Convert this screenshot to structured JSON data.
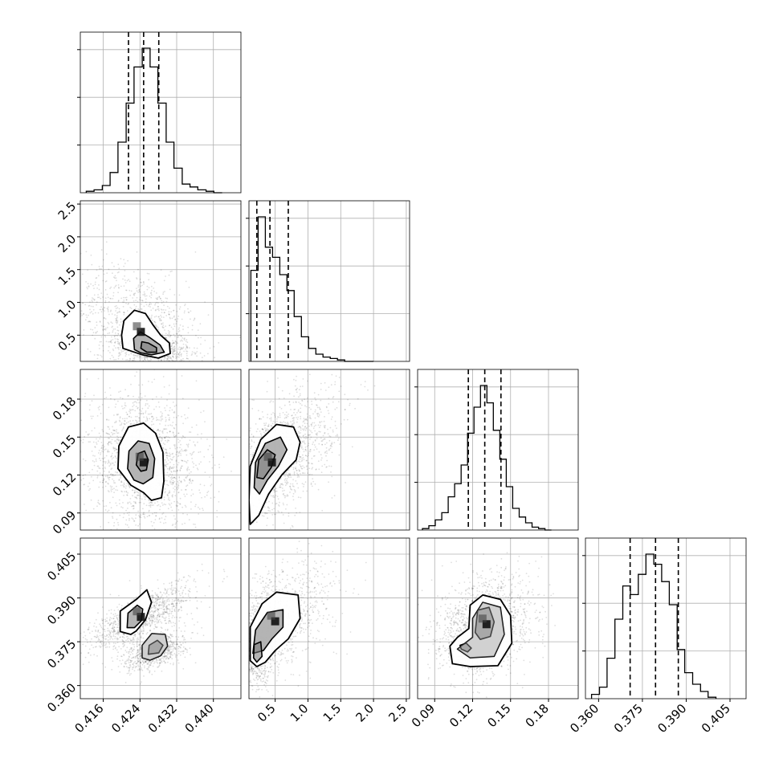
{
  "chart_data": {
    "type": "corner",
    "grid": true,
    "histogram_style": "step",
    "point_color": "#000000",
    "fill_color": "#000000",
    "quantile_line_style": "dashed",
    "params": [
      {
        "range": [
          0.411,
          0.446
        ],
        "ticks": [
          "0.416",
          "0.424",
          "0.432",
          "0.440"
        ],
        "tick_values": [
          0.416,
          0.424,
          0.432,
          0.44
        ],
        "quantiles": [
          0.4215,
          0.4248,
          0.4281
        ],
        "hist_bins": [
          0.4123,
          0.414,
          0.4158,
          0.4175,
          0.4192,
          0.421,
          0.4227,
          0.4245,
          0.4262,
          0.4279,
          0.4297,
          0.4314,
          0.4332,
          0.4349,
          0.4366,
          0.4384,
          0.4401,
          0.4419
        ],
        "hist_counts": [
          0.01,
          0.02,
          0.05,
          0.14,
          0.35,
          0.62,
          0.87,
          1.0,
          0.87,
          0.62,
          0.35,
          0.17,
          0.06,
          0.04,
          0.02,
          0.01,
          0.0
        ]
      },
      {
        "range": [
          0.1,
          2.55
        ],
        "ticks": [
          "0.5",
          "1.0",
          "1.5",
          "2.0",
          "2.5"
        ],
        "tick_values": [
          0.5,
          1.0,
          1.5,
          2.0,
          2.5
        ],
        "quantiles": [
          0.22,
          0.42,
          0.7
        ],
        "hist_bins": [
          0.13,
          0.24,
          0.35,
          0.46,
          0.57,
          0.68,
          0.79,
          0.9,
          1.01,
          1.12,
          1.23,
          1.34,
          1.45,
          1.56,
          1.67,
          1.78,
          1.89,
          2.0
        ],
        "hist_counts": [
          0.63,
          1.0,
          0.79,
          0.72,
          0.6,
          0.49,
          0.31,
          0.17,
          0.09,
          0.05,
          0.03,
          0.02,
          0.01,
          0.0,
          0.0,
          0.0,
          0.0
        ]
      },
      {
        "range": [
          0.0765,
          0.2035
        ],
        "ticks": [
          "0.09",
          "0.12",
          "0.15",
          "0.18"
        ],
        "tick_values": [
          0.09,
          0.12,
          0.15,
          0.18
        ],
        "quantiles": [
          0.1166,
          0.1296,
          0.1424
        ],
        "hist_bins": [
          0.0803,
          0.0854,
          0.0905,
          0.0956,
          0.1007,
          0.1058,
          0.1109,
          0.116,
          0.1211,
          0.1262,
          0.1313,
          0.1364,
          0.1415,
          0.1466,
          0.1517,
          0.1568,
          0.1619,
          0.167,
          0.1721,
          0.1772,
          0.1823
        ],
        "hist_counts": [
          0.01,
          0.03,
          0.07,
          0.12,
          0.23,
          0.32,
          0.45,
          0.67,
          0.85,
          1.0,
          0.88,
          0.69,
          0.49,
          0.3,
          0.15,
          0.09,
          0.05,
          0.02,
          0.01,
          0.0
        ]
      },
      {
        "range": [
          0.3555,
          0.4105
        ],
        "ticks": [
          "0.360",
          "0.375",
          "0.390",
          "0.405"
        ],
        "tick_values": [
          0.36,
          0.375,
          0.39,
          0.405
        ],
        "quantiles": [
          0.3708,
          0.3795,
          0.3873
        ],
        "hist_bins": [
          0.3576,
          0.3603,
          0.3629,
          0.3656,
          0.3683,
          0.3709,
          0.3736,
          0.3762,
          0.3789,
          0.3816,
          0.3842,
          0.3869,
          0.3895,
          0.3922,
          0.3949,
          0.3975,
          0.4002
        ],
        "hist_counts": [
          0.03,
          0.08,
          0.28,
          0.55,
          0.78,
          0.72,
          0.86,
          1.0,
          0.93,
          0.81,
          0.65,
          0.34,
          0.18,
          0.1,
          0.05,
          0.01
        ]
      }
    ],
    "pairs": [
      {
        "x": 0,
        "y": 1,
        "blobs": [
          {
            "cx": 0.4242,
            "cy": 0.55,
            "sx": 0.0048,
            "sy": 0.35,
            "corr": -0.45,
            "w": 0.65
          },
          {
            "cx": 0.4268,
            "cy": 0.3,
            "sx": 0.0025,
            "sy": 0.1,
            "corr": -0.3,
            "w": 0.35
          }
        ],
        "levels": [
          [
            [
              0.4203,
              0.3
            ],
            [
              0.42,
              0.5
            ],
            [
              0.4205,
              0.72
            ],
            [
              0.4228,
              0.88
            ],
            [
              0.4252,
              0.83
            ],
            [
              0.4268,
              0.66
            ],
            [
              0.4285,
              0.5
            ],
            [
              0.4304,
              0.38
            ],
            [
              0.4306,
              0.22
            ],
            [
              0.428,
              0.15
            ],
            [
              0.4245,
              0.2
            ]
          ],
          [
            [
              0.4228,
              0.28
            ],
            [
              0.4226,
              0.45
            ],
            [
              0.4241,
              0.55
            ],
            [
              0.4262,
              0.46
            ],
            [
              0.4284,
              0.35
            ],
            [
              0.4293,
              0.24
            ],
            [
              0.4265,
              0.2
            ],
            [
              0.4242,
              0.23
            ]
          ],
          [
            [
              0.4242,
              0.3
            ],
            [
              0.4244,
              0.4
            ],
            [
              0.4258,
              0.38
            ],
            [
              0.4276,
              0.31
            ],
            [
              0.4276,
              0.24
            ],
            [
              0.4255,
              0.24
            ]
          ]
        ]
      },
      {
        "x": 0,
        "y": 2,
        "blobs": [
          {
            "cx": 0.4248,
            "cy": 0.13,
            "sx": 0.0042,
            "sy": 0.017,
            "corr": -0.15,
            "w": 1.0
          }
        ],
        "levels": [
          [
            [
              0.4192,
              0.125
            ],
            [
              0.4194,
              0.143
            ],
            [
              0.4215,
              0.158
            ],
            [
              0.4248,
              0.161
            ],
            [
              0.4274,
              0.153
            ],
            [
              0.429,
              0.138
            ],
            [
              0.4292,
              0.115
            ],
            [
              0.4287,
              0.102
            ],
            [
              0.4265,
              0.1
            ],
            [
              0.4248,
              0.106
            ],
            [
              0.422,
              0.112
            ]
          ],
          [
            [
              0.4213,
              0.125
            ],
            [
              0.4216,
              0.139
            ],
            [
              0.4236,
              0.147
            ],
            [
              0.426,
              0.145
            ],
            [
              0.4272,
              0.133
            ],
            [
              0.4268,
              0.118
            ],
            [
              0.4247,
              0.113
            ],
            [
              0.4227,
              0.116
            ]
          ],
          [
            [
              0.4232,
              0.128
            ],
            [
              0.4236,
              0.137
            ],
            [
              0.425,
              0.139
            ],
            [
              0.4258,
              0.132
            ],
            [
              0.4254,
              0.124
            ],
            [
              0.4242,
              0.123
            ]
          ]
        ]
      },
      {
        "x": 1,
        "y": 2,
        "blobs": [
          {
            "cx": 0.45,
            "cy": 0.13,
            "sx": 0.32,
            "sy": 0.018,
            "corr": 0.6,
            "w": 1.0
          }
        ],
        "levels": [
          [
            [
              0.12,
              0.081
            ],
            [
              0.1,
              0.1
            ],
            [
              0.12,
              0.127
            ],
            [
              0.28,
              0.148
            ],
            [
              0.52,
              0.16
            ],
            [
              0.78,
              0.158
            ],
            [
              0.88,
              0.146
            ],
            [
              0.82,
              0.132
            ],
            [
              0.6,
              0.12
            ],
            [
              0.4,
              0.105
            ],
            [
              0.25,
              0.088
            ]
          ],
          [
            [
              0.18,
              0.11
            ],
            [
              0.2,
              0.13
            ],
            [
              0.35,
              0.145
            ],
            [
              0.58,
              0.15
            ],
            [
              0.68,
              0.14
            ],
            [
              0.55,
              0.127
            ],
            [
              0.38,
              0.116
            ],
            [
              0.26,
              0.105
            ]
          ],
          [
            [
              0.22,
              0.118
            ],
            [
              0.25,
              0.132
            ],
            [
              0.38,
              0.14
            ],
            [
              0.5,
              0.136
            ],
            [
              0.44,
              0.126
            ],
            [
              0.32,
              0.117
            ]
          ]
        ]
      },
      {
        "x": 0,
        "y": 3,
        "blobs": [
          {
            "cx": 0.4242,
            "cy": 0.3835,
            "sx": 0.0038,
            "sy": 0.0038,
            "corr": 0.75,
            "w": 0.6
          },
          {
            "cx": 0.4272,
            "cy": 0.3715,
            "sx": 0.0022,
            "sy": 0.0022,
            "corr": 0.5,
            "w": 0.4
          }
        ],
        "levels": [
          [
            [
              0.4197,
              0.3785
            ],
            [
              0.4197,
              0.3855
            ],
            [
              0.4232,
              0.3895
            ],
            [
              0.4255,
              0.3928
            ],
            [
              0.4265,
              0.3885
            ],
            [
              0.4252,
              0.3825
            ],
            [
              0.4232,
              0.3787
            ],
            [
              0.422,
              0.3775
            ]
          ],
          [
            [
              0.4245,
              0.3695
            ],
            [
              0.4245,
              0.3738
            ],
            [
              0.4266,
              0.3778
            ],
            [
              0.4295,
              0.3775
            ],
            [
              0.43,
              0.3735
            ],
            [
              0.4285,
              0.3702
            ],
            [
              0.4262,
              0.3687
            ]
          ],
          [
            [
              0.4212,
              0.3798
            ],
            [
              0.4214,
              0.3848
            ],
            [
              0.4234,
              0.3875
            ],
            [
              0.4246,
              0.3862
            ],
            [
              0.4243,
              0.3822
            ],
            [
              0.4228,
              0.3798
            ]
          ],
          [
            [
              0.4258,
              0.3707
            ],
            [
              0.426,
              0.3738
            ],
            [
              0.4278,
              0.3755
            ],
            [
              0.429,
              0.3738
            ],
            [
              0.4281,
              0.3712
            ]
          ]
        ]
      },
      {
        "x": 1,
        "y": 3,
        "blobs": [
          {
            "cx": 0.5,
            "cy": 0.382,
            "sx": 0.3,
            "sy": 0.0065,
            "corr": 0.45,
            "w": 0.6
          },
          {
            "cx": 0.22,
            "cy": 0.372,
            "sx": 0.1,
            "sy": 0.004,
            "corr": 0.1,
            "w": 0.4
          }
        ],
        "levels": [
          [
            [
              0.12,
              0.3685
            ],
            [
              0.12,
              0.38
            ],
            [
              0.3,
              0.388
            ],
            [
              0.52,
              0.392
            ],
            [
              0.85,
              0.391
            ],
            [
              0.88,
              0.383
            ],
            [
              0.7,
              0.376
            ],
            [
              0.5,
              0.372
            ],
            [
              0.35,
              0.368
            ],
            [
              0.22,
              0.3665
            ]
          ],
          [
            [
              0.16,
              0.371
            ],
            [
              0.2,
              0.379
            ],
            [
              0.38,
              0.385
            ],
            [
              0.62,
              0.386
            ],
            [
              0.62,
              0.38
            ],
            [
              0.45,
              0.376
            ],
            [
              0.32,
              0.372
            ]
          ],
          [
            [
              0.17,
              0.3695
            ],
            [
              0.18,
              0.374
            ],
            [
              0.28,
              0.375
            ],
            [
              0.3,
              0.37
            ],
            [
              0.22,
              0.368
            ]
          ]
        ]
      },
      {
        "x": 2,
        "y": 3,
        "blobs": [
          {
            "cx": 0.131,
            "cy": 0.381,
            "sx": 0.012,
            "sy": 0.0055,
            "corr": 0.2,
            "w": 0.85
          },
          {
            "cx": 0.115,
            "cy": 0.372,
            "sx": 0.006,
            "sy": 0.002,
            "corr": 0.0,
            "w": 0.15
          }
        ],
        "levels": [
          [
            [
              0.102,
              0.3735
            ],
            [
              0.104,
              0.3675
            ],
            [
              0.118,
              0.3665
            ],
            [
              0.14,
              0.3668
            ],
            [
              0.151,
              0.3745
            ],
            [
              0.15,
              0.384
            ],
            [
              0.142,
              0.3895
            ],
            [
              0.128,
              0.391
            ],
            [
              0.118,
              0.3875
            ],
            [
              0.117,
              0.3795
            ],
            [
              0.108,
              0.3765
            ]
          ],
          [
            [
              0.108,
              0.3725
            ],
            [
              0.118,
              0.3695
            ],
            [
              0.137,
              0.37
            ],
            [
              0.145,
              0.3775
            ],
            [
              0.142,
              0.3868
            ],
            [
              0.128,
              0.3885
            ],
            [
              0.12,
              0.383
            ],
            [
              0.12,
              0.3765
            ]
          ],
          [
            [
              0.122,
              0.3782
            ],
            [
              0.124,
              0.3858
            ],
            [
              0.133,
              0.3868
            ],
            [
              0.137,
              0.3818
            ],
            [
              0.134,
              0.3768
            ],
            [
              0.126,
              0.3758
            ]
          ],
          [
            [
              0.111,
              0.3725
            ],
            [
              0.116,
              0.3715
            ],
            [
              0.119,
              0.3728
            ],
            [
              0.115,
              0.3745
            ],
            [
              0.11,
              0.3738
            ]
          ]
        ]
      }
    ]
  }
}
